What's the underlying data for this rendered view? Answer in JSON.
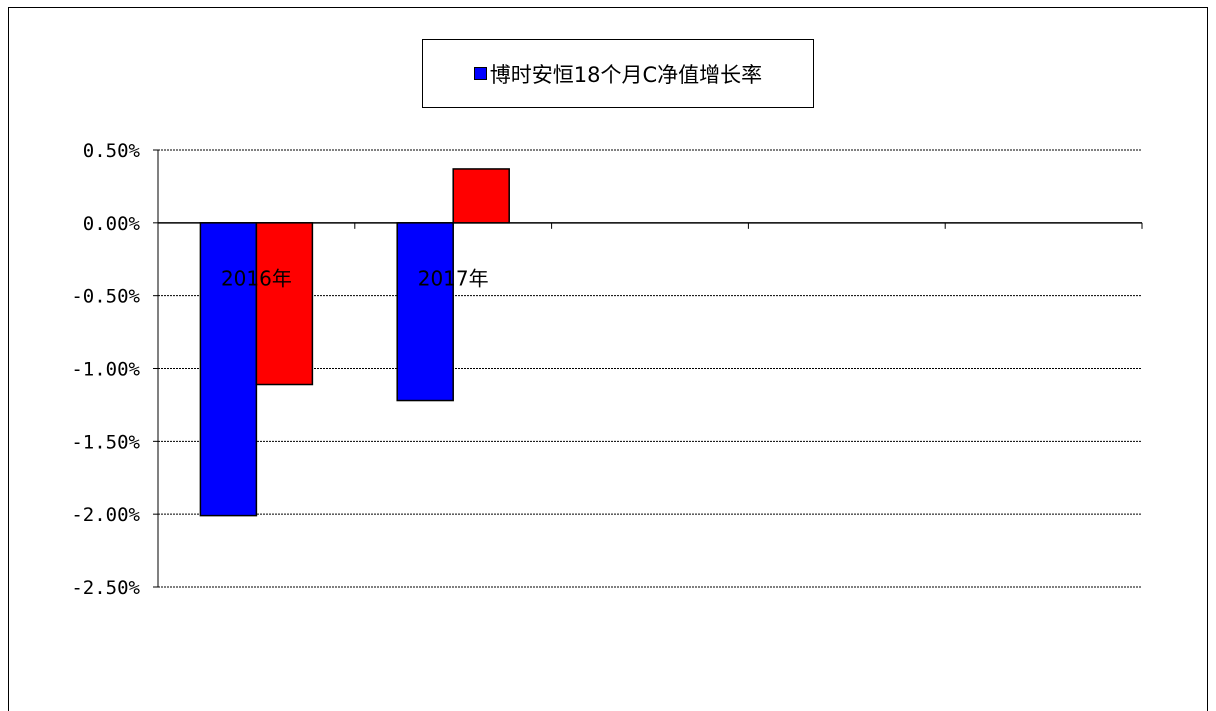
{
  "chart_data": {
    "type": "bar",
    "categories": [
      "2016年",
      "2017年"
    ],
    "series": [
      {
        "name": "博时安恒18个月C净值增长率",
        "color": "#0000ff",
        "values": [
          -2.01,
          -1.22
        ]
      },
      {
        "color": "#ff0000",
        "values": [
          -1.11,
          0.37
        ]
      }
    ],
    "ylim": [
      -2.5,
      0.5
    ],
    "yticks": [
      0.5,
      0.0,
      -0.5,
      -1.0,
      -1.5,
      -2.0,
      -2.5
    ],
    "ytick_labels": [
      "0.50%",
      "0.00%",
      "-0.50%",
      "-1.00%",
      "-1.50%",
      "-2.00%",
      "-2.50%"
    ],
    "grid": true,
    "legend_position": "top-center"
  }
}
